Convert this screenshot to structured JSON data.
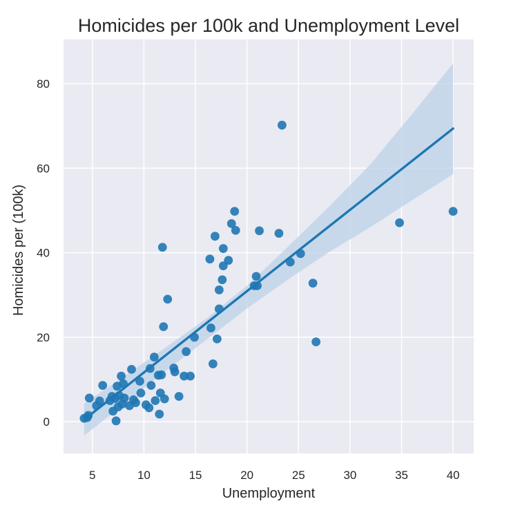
{
  "chart_data": {
    "type": "scatter",
    "title": "Homicides per 100k and Unemployment Level",
    "xlabel": "Unemployment",
    "ylabel": "Homicides per (100k)",
    "xlim": [
      2.2,
      42.0
    ],
    "ylim": [
      -7.5,
      90.5
    ],
    "xticks": [
      "5",
      "10",
      "15",
      "20",
      "25",
      "30",
      "35",
      "40"
    ],
    "yticks": [
      "0",
      "20",
      "40",
      "60",
      "80"
    ],
    "grid": true,
    "background": "#eaeaf2",
    "point_color": "#1f77b4",
    "ci_color": "#bcd2e8",
    "points": [
      {
        "x": 4.2,
        "y": 0.8
      },
      {
        "x": 4.5,
        "y": 1.0
      },
      {
        "x": 4.6,
        "y": 1.5
      },
      {
        "x": 4.7,
        "y": 5.6
      },
      {
        "x": 5.4,
        "y": 3.8
      },
      {
        "x": 5.7,
        "y": 4.9
      },
      {
        "x": 6.0,
        "y": 8.6
      },
      {
        "x": 6.7,
        "y": 5.0
      },
      {
        "x": 6.9,
        "y": 6.0
      },
      {
        "x": 7.0,
        "y": 2.5
      },
      {
        "x": 7.2,
        "y": 5.5
      },
      {
        "x": 7.3,
        "y": 0.2
      },
      {
        "x": 7.4,
        "y": 8.4
      },
      {
        "x": 7.5,
        "y": 3.5
      },
      {
        "x": 7.6,
        "y": 6.2
      },
      {
        "x": 7.8,
        "y": 10.8
      },
      {
        "x": 7.9,
        "y": 4.2
      },
      {
        "x": 8.0,
        "y": 9.0
      },
      {
        "x": 8.1,
        "y": 5.6
      },
      {
        "x": 8.6,
        "y": 3.8
      },
      {
        "x": 8.8,
        "y": 12.4
      },
      {
        "x": 9.0,
        "y": 5.2
      },
      {
        "x": 9.2,
        "y": 4.5
      },
      {
        "x": 9.6,
        "y": 9.6
      },
      {
        "x": 9.7,
        "y": 6.8
      },
      {
        "x": 10.2,
        "y": 4.0
      },
      {
        "x": 10.5,
        "y": 3.3
      },
      {
        "x": 10.6,
        "y": 12.6
      },
      {
        "x": 10.7,
        "y": 8.6
      },
      {
        "x": 11.0,
        "y": 15.3
      },
      {
        "x": 11.1,
        "y": 5.0
      },
      {
        "x": 11.4,
        "y": 11.0
      },
      {
        "x": 11.5,
        "y": 1.8
      },
      {
        "x": 11.6,
        "y": 6.8
      },
      {
        "x": 11.7,
        "y": 11.1
      },
      {
        "x": 11.8,
        "y": 41.3
      },
      {
        "x": 11.9,
        "y": 22.5
      },
      {
        "x": 12.0,
        "y": 5.4
      },
      {
        "x": 12.3,
        "y": 29.0
      },
      {
        "x": 12.9,
        "y": 12.7
      },
      {
        "x": 13.0,
        "y": 11.8
      },
      {
        "x": 13.4,
        "y": 6.0
      },
      {
        "x": 13.9,
        "y": 10.8
      },
      {
        "x": 14.1,
        "y": 16.6
      },
      {
        "x": 14.5,
        "y": 10.8
      },
      {
        "x": 14.9,
        "y": 20.0
      },
      {
        "x": 16.4,
        "y": 38.5
      },
      {
        "x": 16.5,
        "y": 22.2
      },
      {
        "x": 16.7,
        "y": 13.7
      },
      {
        "x": 16.9,
        "y": 43.9
      },
      {
        "x": 17.1,
        "y": 19.6
      },
      {
        "x": 17.3,
        "y": 31.2
      },
      {
        "x": 17.3,
        "y": 26.7
      },
      {
        "x": 17.6,
        "y": 33.6
      },
      {
        "x": 17.7,
        "y": 36.9
      },
      {
        "x": 17.7,
        "y": 41.0
      },
      {
        "x": 18.2,
        "y": 38.2
      },
      {
        "x": 18.5,
        "y": 46.9
      },
      {
        "x": 18.8,
        "y": 49.8
      },
      {
        "x": 18.9,
        "y": 45.3
      },
      {
        "x": 20.7,
        "y": 32.2
      },
      {
        "x": 20.9,
        "y": 34.4
      },
      {
        "x": 21.0,
        "y": 32.2
      },
      {
        "x": 21.2,
        "y": 45.2
      },
      {
        "x": 23.1,
        "y": 44.6
      },
      {
        "x": 23.4,
        "y": 70.2
      },
      {
        "x": 24.2,
        "y": 37.8
      },
      {
        "x": 25.2,
        "y": 39.8
      },
      {
        "x": 26.4,
        "y": 32.8
      },
      {
        "x": 26.7,
        "y": 18.9
      },
      {
        "x": 34.8,
        "y": 47.1
      },
      {
        "x": 40.0,
        "y": 49.8
      }
    ],
    "regression": {
      "x": [
        4.2,
        40.0
      ],
      "y": [
        0.5,
        69.4
      ],
      "ci_upper": [
        {
          "x": 4.2,
          "y": 4.3
        },
        {
          "x": 8.0,
          "y": 10.6
        },
        {
          "x": 12.0,
          "y": 17.4
        },
        {
          "x": 16.0,
          "y": 24.3
        },
        {
          "x": 20.0,
          "y": 32.2
        },
        {
          "x": 24.0,
          "y": 41.5
        },
        {
          "x": 28.0,
          "y": 51.0
        },
        {
          "x": 32.0,
          "y": 61.0
        },
        {
          "x": 36.0,
          "y": 72.8
        },
        {
          "x": 40.0,
          "y": 84.8
        }
      ],
      "ci_lower": [
        {
          "x": 4.2,
          "y": -3.3
        },
        {
          "x": 8.0,
          "y": 4.0
        },
        {
          "x": 12.0,
          "y": 11.8
        },
        {
          "x": 16.0,
          "y": 19.3
        },
        {
          "x": 20.0,
          "y": 26.8
        },
        {
          "x": 24.0,
          "y": 33.7
        },
        {
          "x": 28.0,
          "y": 40.2
        },
        {
          "x": 32.0,
          "y": 46.1
        },
        {
          "x": 36.0,
          "y": 52.4
        },
        {
          "x": 40.0,
          "y": 58.6
        }
      ]
    }
  }
}
